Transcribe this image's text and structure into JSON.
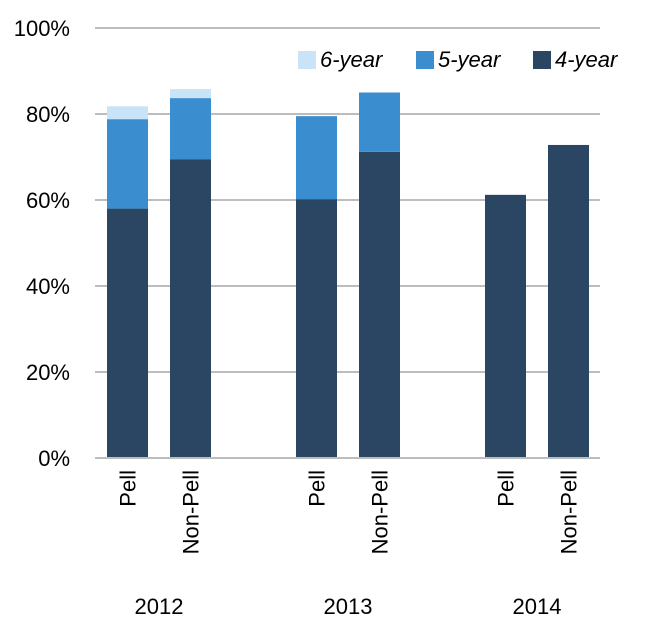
{
  "chart_data": {
    "type": "bar",
    "stacked": true,
    "groups": [
      "2012",
      "2013",
      "2014"
    ],
    "categories": [
      "Pell",
      "Non-Pell",
      "Pell",
      "Non-Pell",
      "Pell",
      "Non-Pell"
    ],
    "category_groups": [
      "2012",
      "2012",
      "2013",
      "2013",
      "2014",
      "2014"
    ],
    "series": [
      {
        "name": "4-year",
        "color": "#2b4662",
        "values": [
          58,
          69.5,
          60.2,
          71.2,
          61.2,
          72.8
        ]
      },
      {
        "name": "5-year",
        "color": "#3a8dcf",
        "values": [
          20.8,
          14.2,
          19.3,
          13.8,
          0,
          0
        ]
      },
      {
        "name": "6-year",
        "color": "#c9e4f6",
        "values": [
          3,
          2.1,
          0,
          0,
          0,
          0
        ]
      }
    ],
    "ylim": [
      0,
      100
    ],
    "yticks": [
      0,
      20,
      40,
      60,
      80,
      100
    ],
    "ytick_labels": [
      "0%",
      "20%",
      "40%",
      "60%",
      "80%",
      "100%"
    ],
    "grid": true,
    "legend_placement": "top-right"
  }
}
